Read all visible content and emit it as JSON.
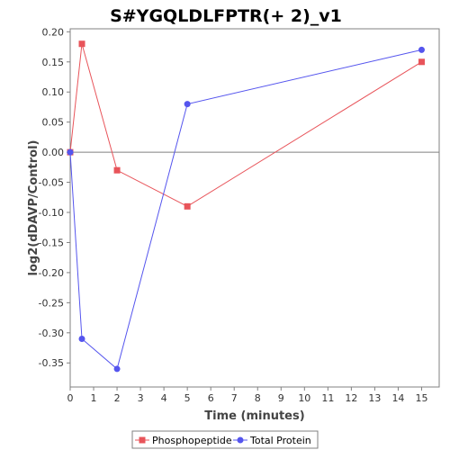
{
  "chart_data": {
    "type": "line",
    "title": "S#YGQLDLFPTR(+ 2)_v1",
    "xlabel": "Time (minutes)",
    "ylabel": "log2(dDAVP/Control)",
    "xlim": [
      0,
      15.75
    ],
    "ylim": [
      -0.39,
      0.205
    ],
    "xticks": [
      0,
      1,
      2,
      3,
      4,
      5,
      6,
      7,
      8,
      9,
      10,
      11,
      12,
      13,
      14,
      15
    ],
    "yticks": [
      0.2,
      0.15,
      0.1,
      0.05,
      0.0,
      -0.05,
      -0.1,
      -0.15,
      -0.2,
      -0.25,
      -0.3,
      -0.35
    ],
    "ytick_labels": [
      "0.20",
      "0.15",
      "0.10",
      "0.05",
      "0.00",
      "-0.05",
      "-0.10",
      "-0.15",
      "-0.20",
      "-0.25",
      "-0.30",
      "-0.35"
    ],
    "grid": false,
    "zero_line": true,
    "legend_position": "bottom",
    "series": [
      {
        "name": "Phosphopeptide",
        "color": "#e8545a",
        "marker": "square",
        "x": [
          0,
          0.5,
          2,
          5,
          15
        ],
        "y": [
          0.0,
          0.18,
          -0.03,
          -0.09,
          0.15
        ]
      },
      {
        "name": "Total Protein",
        "color": "#5555ee",
        "marker": "circle",
        "x": [
          0,
          0.5,
          2,
          5,
          15
        ],
        "y": [
          0.0,
          -0.31,
          -0.36,
          0.08,
          0.17
        ]
      }
    ]
  }
}
